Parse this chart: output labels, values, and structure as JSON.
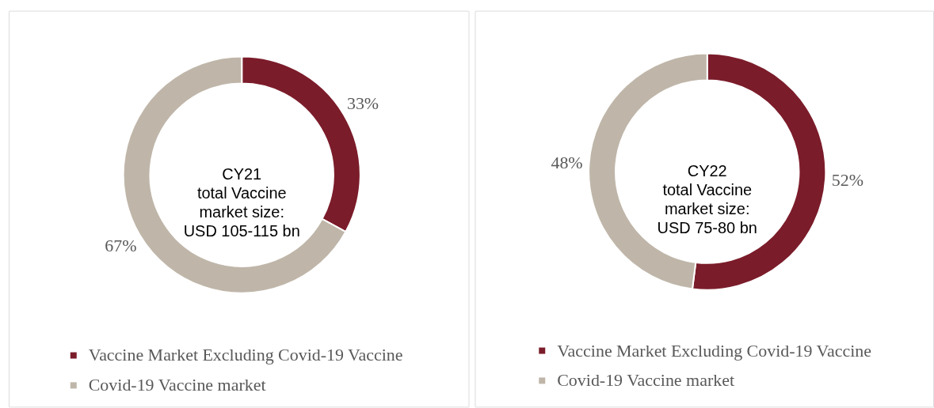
{
  "chart_data": [
    {
      "type": "donut",
      "annotations": [
        "CY21\ntotal Vaccine\nmarket size:\nUSD 105-115 bn"
      ],
      "categories": [
        "Vaccine Market Excluding Covid-19 Vaccine",
        "Covid-19 Vaccine market"
      ],
      "values": [
        33,
        67
      ],
      "colors": [
        "#7b1c2a",
        "#bfb6a9"
      ],
      "value_labels": [
        "33%",
        "67%"
      ],
      "legend": "bottom"
    },
    {
      "type": "donut",
      "annotations": [
        "CY22\ntotal Vaccine\nmarket size:\nUSD 75-80 bn"
      ],
      "categories": [
        "Vaccine Market Excluding Covid-19 Vaccine",
        "Covid-19 Vaccine market"
      ],
      "values": [
        52,
        48
      ],
      "colors": [
        "#7b1c2a",
        "#bfb6a9"
      ],
      "value_labels": [
        "52%",
        "48%"
      ],
      "legend": "bottom"
    }
  ]
}
